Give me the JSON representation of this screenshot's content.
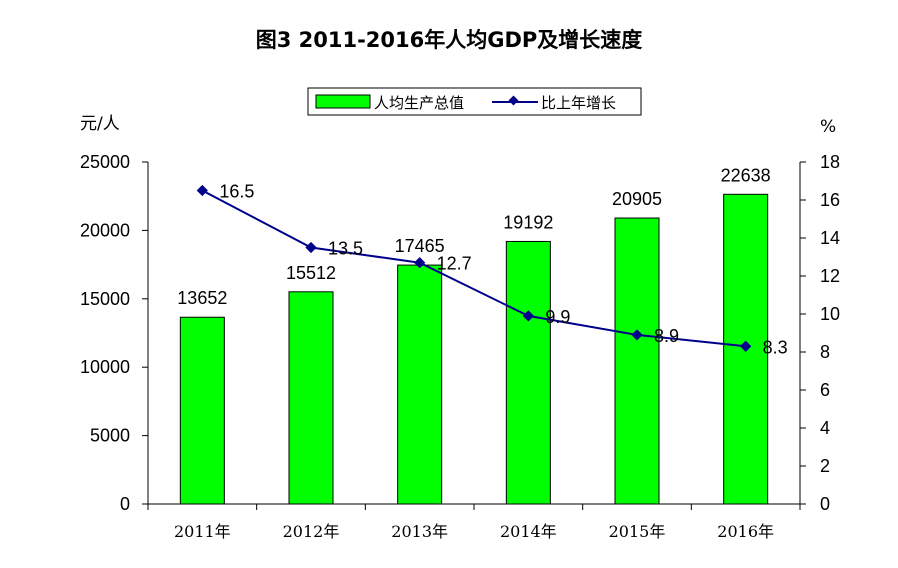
{
  "chart_data": {
    "type": "bar",
    "title": "图3   2011-2016年人均GDP及增长速度",
    "categories": [
      "2011年",
      "2012年",
      "2013年",
      "2014年",
      "2015年",
      "2016年"
    ],
    "series": [
      {
        "name": "人均生产总值",
        "type": "bar",
        "axis": "left",
        "color": "#00ff00",
        "values": [
          13652,
          15512,
          17465,
          19192,
          20905,
          22638
        ]
      },
      {
        "name": "比上年增长",
        "type": "line",
        "axis": "right",
        "color": "#00008b",
        "marker": "diamond",
        "values": [
          16.5,
          13.5,
          12.7,
          9.9,
          8.9,
          8.3
        ]
      }
    ],
    "left_axis": {
      "unit": "元/人",
      "ylim": [
        0,
        25000
      ],
      "ticks": [
        "0",
        "5000",
        "10000",
        "15000",
        "20000",
        "25000"
      ]
    },
    "right_axis": {
      "unit": "%",
      "ylim": [
        0,
        18
      ],
      "ticks": [
        "0",
        "2",
        "4",
        "6",
        "8",
        "10",
        "12",
        "14",
        "16",
        "18"
      ]
    },
    "grid": false,
    "legend_position": "top-center"
  }
}
